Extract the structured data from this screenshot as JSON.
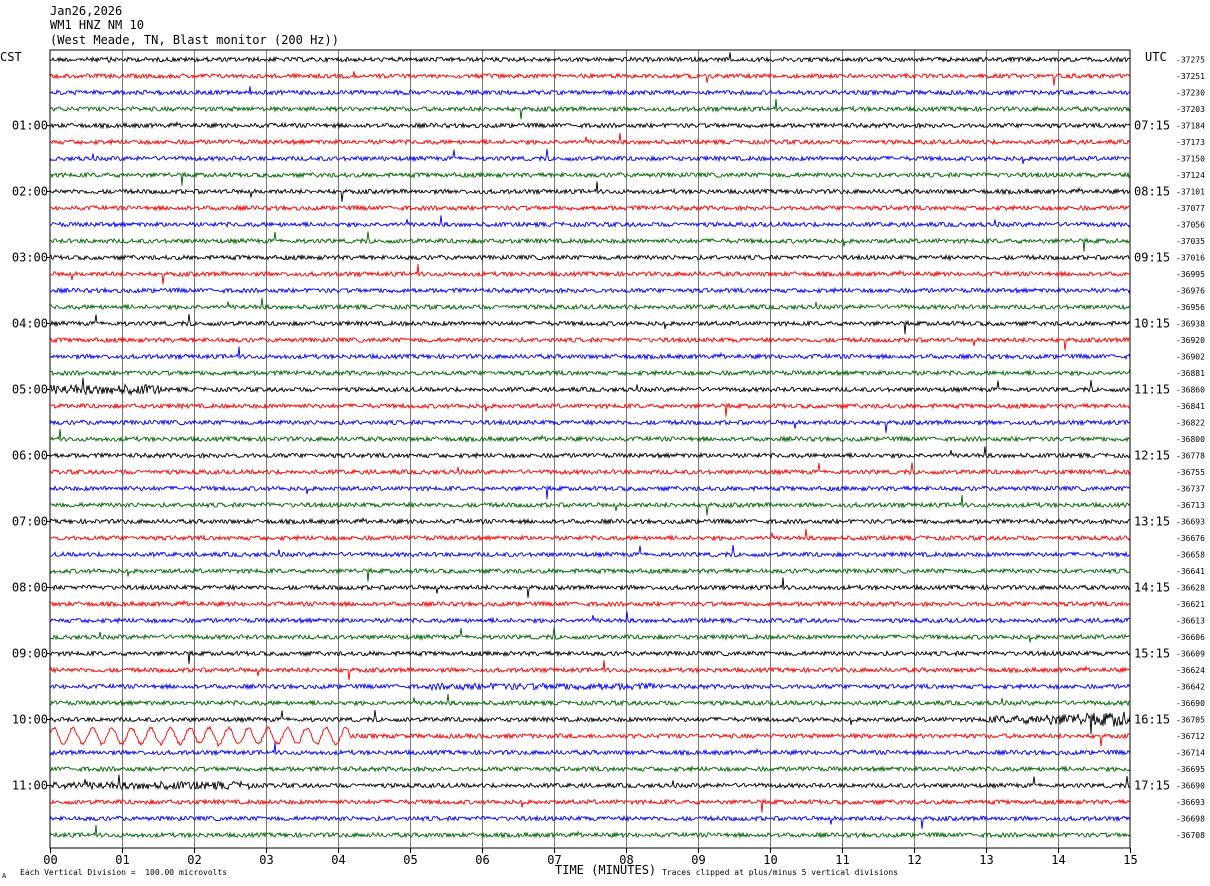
{
  "header": {
    "date": "Jan26,2026",
    "station": "WM1 HNZ NM 10",
    "location": "(West Meade, TN, Blast monitor (200 Hz))"
  },
  "left_timezone": "CST",
  "right_timezone": "UTC",
  "footer": {
    "scale_note": "Each Vertical Division =  100.00 microvolts",
    "clip_note": "Traces clipped at plus/minus 5 vertical divisions",
    "corner_mark": "A"
  },
  "chart_data": {
    "type": "line",
    "subtype": "helicorder",
    "xlabel": "TIME (MINUTES)",
    "x_ticks": [
      "00",
      "01",
      "02",
      "03",
      "04",
      "05",
      "06",
      "07",
      "08",
      "09",
      "10",
      "11",
      "12",
      "13",
      "14",
      "15"
    ],
    "xlim": [
      0,
      15
    ],
    "trace_colors": [
      "#000000",
      "#ff0000",
      "#0000ff",
      "#006400"
    ],
    "left_hour_labels": [
      "01:00",
      "02:00",
      "03:00",
      "04:00",
      "05:00",
      "06:00",
      "07:00",
      "08:00",
      "09:00",
      "10:00",
      "11:00"
    ],
    "right_hour_labels": [
      "07:15",
      "08:15",
      "09:15",
      "10:15",
      "11:15",
      "12:15",
      "13:15",
      "14:15",
      "15:15",
      "16:15",
      "17:15"
    ],
    "row_offset_labels": [
      "-37275",
      "-37251",
      "-37230",
      "-37203",
      "-37184",
      "-37173",
      "-37150",
      "-37124",
      "-37101",
      "-37077",
      "-37056",
      "-37035",
      "-37016",
      "-36995",
      "-36976",
      "-36956",
      "-36938",
      "-36920",
      "-36902",
      "-36881",
      "-36860",
      "-36841",
      "-36822",
      "-36800",
      "-36778",
      "-36755",
      "-36737",
      "-36713",
      "-36693",
      "-36676",
      "-36658",
      "-36641",
      "-36628",
      "-36621",
      "-36613",
      "-36606",
      "-36609",
      "-36624",
      "-36642",
      "-36690",
      "-36705",
      "-36712",
      "-36714",
      "-36695",
      "-36690",
      "-36693",
      "-36698",
      "-36708"
    ],
    "grid": true,
    "grid_axis": "x"
  }
}
